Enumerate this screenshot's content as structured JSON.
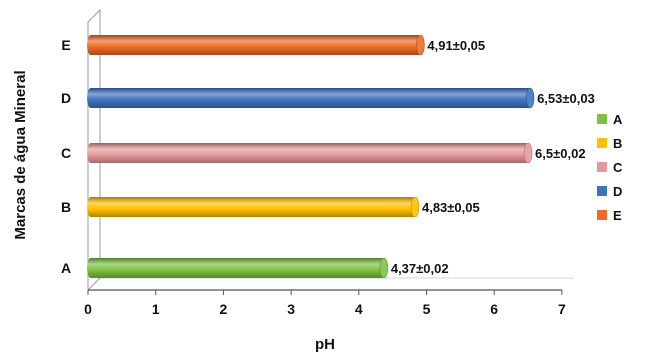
{
  "chart_data": {
    "type": "bar",
    "orientation": "horizontal",
    "style": "3d-cylinder",
    "xlabel": "pH",
    "ylabel": "Marcas de água Mineral",
    "categories": [
      "A",
      "B",
      "C",
      "D",
      "E"
    ],
    "values": [
      4.37,
      4.83,
      6.5,
      6.53,
      4.91
    ],
    "data_labels": [
      "4,37±0,02",
      "4,83±0,05",
      "6,5±0,02",
      "6,53±0,03",
      "4,91±0,05"
    ],
    "colors": [
      "#7dc242",
      "#ffc000",
      "#e6999b",
      "#3f74c0",
      "#ee6a25"
    ],
    "xlim": [
      0,
      7
    ],
    "xticks": [
      "0",
      "1",
      "2",
      "3",
      "4",
      "5",
      "6",
      "7"
    ],
    "grid": false,
    "legend": {
      "position": "right",
      "entries": [
        "A",
        "B",
        "C",
        "D",
        "E"
      ]
    }
  }
}
